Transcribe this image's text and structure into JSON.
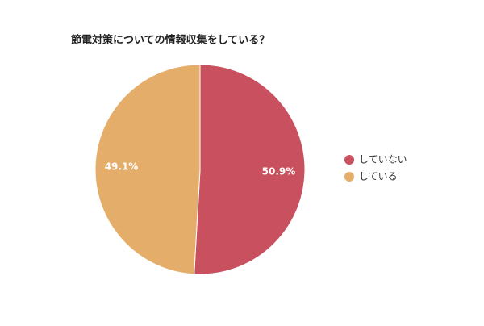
{
  "chart_data": {
    "type": "pie",
    "title": "節電対策についての情報収集をしている？",
    "categories": [
      "していない",
      "している"
    ],
    "values": [
      50.9,
      49.1
    ],
    "value_labels": [
      "50.9%",
      "49.1%"
    ],
    "colors": [
      "#c9505e",
      "#e5ad6a"
    ]
  }
}
